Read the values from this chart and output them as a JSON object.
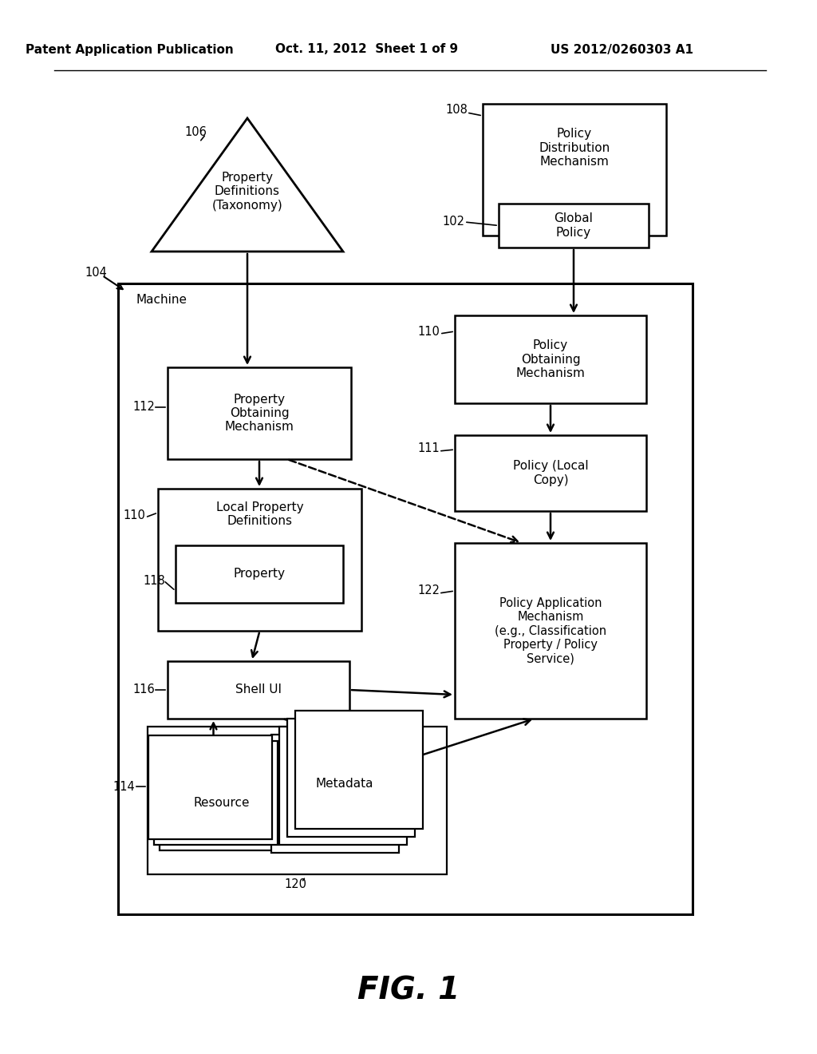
{
  "header_left": "Patent Application Publication",
  "header_mid": "Oct. 11, 2012  Sheet 1 of 9",
  "header_right": "US 2012/0260303 A1",
  "fig_label": "FIG. 1",
  "bg_color": "#ffffff"
}
